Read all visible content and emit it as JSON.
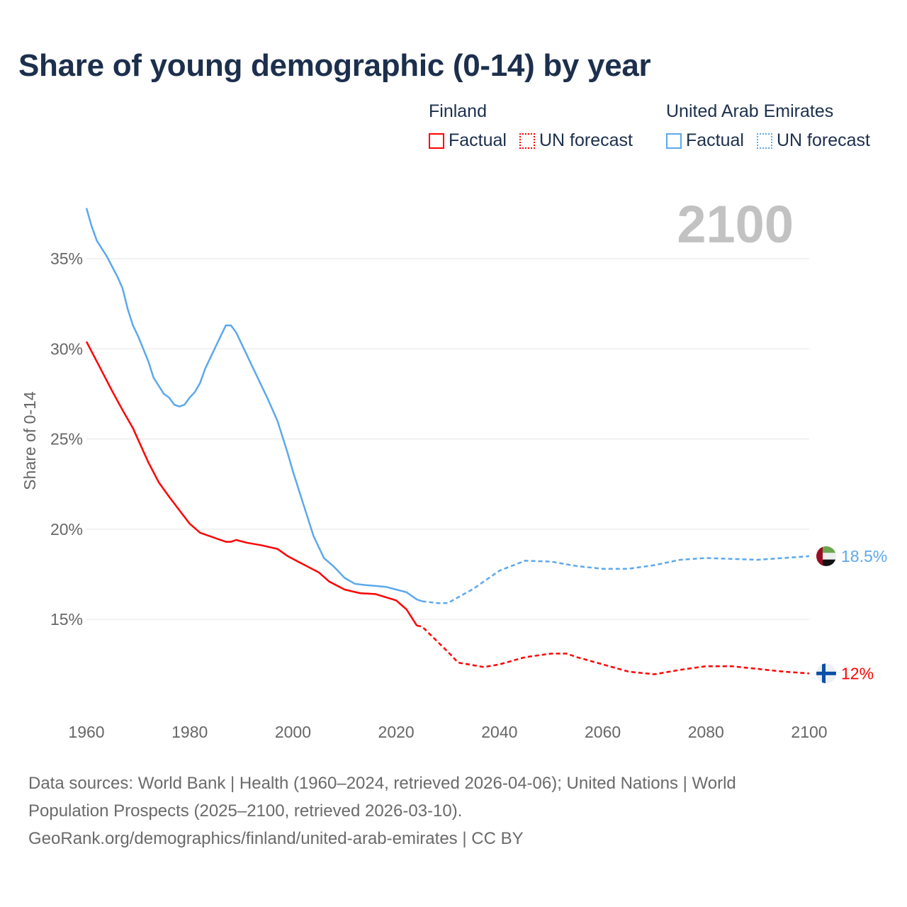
{
  "title": "Share of young demographic (0-14) by year",
  "legend": {
    "groups": [
      {
        "country": "Finland",
        "factual": "Factual",
        "forecast": "UN forecast",
        "color": "#ff0000"
      },
      {
        "country": "United Arab Emirates",
        "factual": "Factual",
        "forecast": "UN forecast",
        "color": "#5ca8ec"
      }
    ]
  },
  "year_display": "2100",
  "footer": {
    "line1": "Data sources: World Bank | Health (1960–2024, retrieved 2026-04-06); United Nations | World",
    "line2": "Population Prospects (2025–2100, retrieved 2026-03-10).",
    "line3": "GeoRank.org/demographics/finland/united-arab-emirates | CC BY"
  },
  "chart_data": {
    "type": "line",
    "title": "Share of young demographic (0-14) by year",
    "xlabel": "",
    "ylabel": "Share of 0-14",
    "xlim": [
      1960,
      2100
    ],
    "ylim": [
      10,
      38
    ],
    "x_ticks": [
      "1960",
      "1980",
      "2000",
      "2020",
      "2040",
      "2060",
      "2080",
      "2100"
    ],
    "x_tick_values": [
      1960,
      1980,
      2000,
      2020,
      2040,
      2060,
      2080,
      2100
    ],
    "y_ticks": [
      "15%",
      "20%",
      "25%",
      "30%",
      "35%"
    ],
    "y_tick_values": [
      15,
      20,
      25,
      30,
      35
    ],
    "grid": true,
    "legend_position": "top-right",
    "series": [
      {
        "name": "Finland",
        "color": "#ff0000",
        "end_label": "12%",
        "flag": "finland-flag",
        "factual": [
          [
            1960,
            30.4
          ],
          [
            1962,
            29.3
          ],
          [
            1965,
            27.65
          ],
          [
            1967,
            26.6
          ],
          [
            1969,
            25.6
          ],
          [
            1972,
            23.7
          ],
          [
            1974,
            22.6
          ],
          [
            1976,
            21.8
          ],
          [
            1978,
            21.05
          ],
          [
            1980,
            20.3
          ],
          [
            1982,
            19.8
          ],
          [
            1985,
            19.5
          ],
          [
            1987,
            19.3
          ],
          [
            1988,
            19.3
          ],
          [
            1989,
            19.4
          ],
          [
            1991,
            19.25
          ],
          [
            1994,
            19.1
          ],
          [
            1997,
            18.9
          ],
          [
            1998,
            18.7
          ],
          [
            1999,
            18.5
          ],
          [
            2001,
            18.2
          ],
          [
            2003,
            17.9
          ],
          [
            2005,
            17.6
          ],
          [
            2007,
            17.1
          ],
          [
            2010,
            16.65
          ],
          [
            2013,
            16.45
          ],
          [
            2016,
            16.4
          ],
          [
            2020,
            16.05
          ],
          [
            2022,
            15.55
          ],
          [
            2024,
            14.65
          ]
        ],
        "forecast": [
          [
            2024,
            14.65
          ],
          [
            2025,
            14.6
          ],
          [
            2030,
            13.2
          ],
          [
            2032,
            12.6
          ],
          [
            2037,
            12.35
          ],
          [
            2040,
            12.5
          ],
          [
            2045,
            12.9
          ],
          [
            2050,
            13.1
          ],
          [
            2053,
            13.1
          ],
          [
            2055,
            12.9
          ],
          [
            2060,
            12.5
          ],
          [
            2065,
            12.1
          ],
          [
            2070,
            11.95
          ],
          [
            2075,
            12.2
          ],
          [
            2080,
            12.4
          ],
          [
            2085,
            12.4
          ],
          [
            2090,
            12.25
          ],
          [
            2095,
            12.1
          ],
          [
            2100,
            12.0
          ]
        ]
      },
      {
        "name": "United Arab Emirates",
        "color": "#5ca8ec",
        "end_label": "18.5%",
        "flag": "uae-flag",
        "factual": [
          [
            1960,
            37.8
          ],
          [
            1961,
            36.8
          ],
          [
            1962,
            36.0
          ],
          [
            1964,
            35.1
          ],
          [
            1966,
            34.0
          ],
          [
            1967,
            33.35
          ],
          [
            1968,
            32.2
          ],
          [
            1969,
            31.3
          ],
          [
            1970,
            30.7
          ],
          [
            1972,
            29.3
          ],
          [
            1973,
            28.4
          ],
          [
            1975,
            27.5
          ],
          [
            1976,
            27.3
          ],
          [
            1977,
            26.9
          ],
          [
            1978,
            26.8
          ],
          [
            1979,
            26.9
          ],
          [
            1980,
            27.3
          ],
          [
            1981,
            27.6
          ],
          [
            1982,
            28.1
          ],
          [
            1983,
            28.9
          ],
          [
            1985,
            30.1
          ],
          [
            1987,
            31.3
          ],
          [
            1988,
            31.3
          ],
          [
            1989,
            30.9
          ],
          [
            1990,
            30.3
          ],
          [
            1992,
            29.1
          ],
          [
            1995,
            27.3
          ],
          [
            1997,
            26.0
          ],
          [
            1999,
            24.2
          ],
          [
            2000,
            23.2
          ],
          [
            2002,
            21.4
          ],
          [
            2003,
            20.5
          ],
          [
            2004,
            19.6
          ],
          [
            2005,
            19.0
          ],
          [
            2006,
            18.4
          ],
          [
            2008,
            17.9
          ],
          [
            2010,
            17.3
          ],
          [
            2012,
            16.97
          ],
          [
            2014,
            16.9
          ],
          [
            2016,
            16.85
          ],
          [
            2018,
            16.8
          ],
          [
            2020,
            16.65
          ],
          [
            2022,
            16.5
          ],
          [
            2024,
            16.1
          ],
          [
            2025,
            16.0
          ]
        ],
        "forecast": [
          [
            2025,
            16.0
          ],
          [
            2028,
            15.9
          ],
          [
            2030,
            15.9
          ],
          [
            2035,
            16.7
          ],
          [
            2040,
            17.7
          ],
          [
            2045,
            18.25
          ],
          [
            2050,
            18.2
          ],
          [
            2055,
            17.95
          ],
          [
            2060,
            17.8
          ],
          [
            2065,
            17.8
          ],
          [
            2070,
            18.0
          ],
          [
            2075,
            18.3
          ],
          [
            2080,
            18.4
          ],
          [
            2085,
            18.35
          ],
          [
            2090,
            18.3
          ],
          [
            2095,
            18.4
          ],
          [
            2100,
            18.5
          ]
        ]
      }
    ]
  }
}
